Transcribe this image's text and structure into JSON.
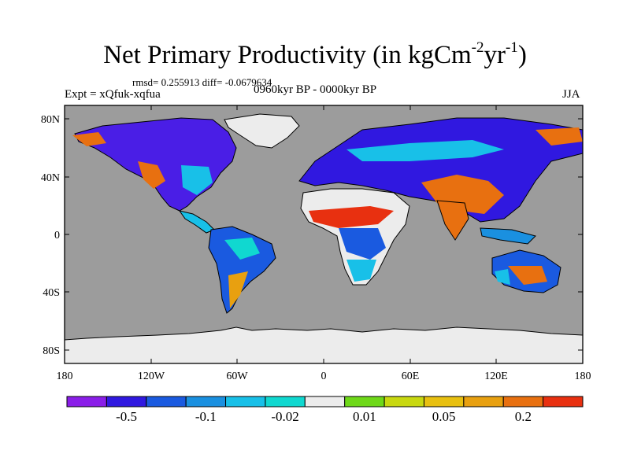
{
  "title": {
    "prefix": "Net Primary Productivity (in kgCm",
    "exp1": "-2",
    "mid": "yr",
    "exp2": "-1",
    "suffix": ")"
  },
  "stats": "rmsd= 0.255913  diff= -0.0679634",
  "experiment": "Expt = xQfuk-xqfua",
  "period": "0960kyr BP - 0000kyr BP",
  "season": "JJA",
  "lat_ticks": [
    "80N",
    "40N",
    "0",
    "40S",
    "80S"
  ],
  "lon_ticks": [
    "180",
    "120W",
    "60W",
    "0",
    "60E",
    "120E",
    "180"
  ],
  "colorbar": {
    "colors": [
      "#8a1ee8",
      "#3018e0",
      "#1a5ae0",
      "#1a90e0",
      "#18c0e8",
      "#10d8d0",
      "#ececec",
      "#6ed818",
      "#c8d810",
      "#e8c010",
      "#e8a010",
      "#e87010",
      "#e83010"
    ],
    "labels": [
      "-0.5",
      "-0.1",
      "-0.02",
      "0.01",
      "0.05",
      "0.2"
    ]
  },
  "colors": {
    "ocean": "#9c9c9c",
    "ice": "#ececec"
  }
}
